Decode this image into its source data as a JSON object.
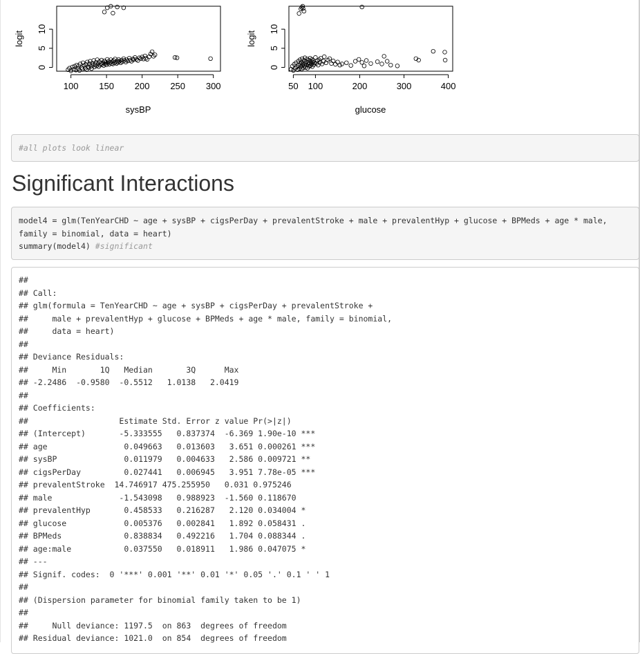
{
  "plots": [
    {
      "ylabel": "logit",
      "xlabel": "sysBP",
      "xticks": [
        100,
        150,
        200,
        250,
        300
      ],
      "yticks": [
        0,
        5,
        10
      ],
      "xlim": [
        80,
        310
      ],
      "ylim": [
        -1,
        16
      ],
      "points": [
        [
          96,
          -0.6
        ],
        [
          98,
          -0.2
        ],
        [
          100,
          -0.9
        ],
        [
          102,
          0.1
        ],
        [
          104,
          -0.5
        ],
        [
          105,
          0.3
        ],
        [
          107,
          -0.7
        ],
        [
          108,
          0.6
        ],
        [
          110,
          -0.3
        ],
        [
          111,
          0.4
        ],
        [
          112,
          -0.8
        ],
        [
          113,
          0.9
        ],
        [
          115,
          0.0
        ],
        [
          116,
          -0.4
        ],
        [
          117,
          1.2
        ],
        [
          118,
          0.5
        ],
        [
          120,
          -0.2
        ],
        [
          121,
          0.8
        ],
        [
          122,
          -0.6
        ],
        [
          123,
          1.4
        ],
        [
          124,
          0.2
        ],
        [
          125,
          -0.1
        ],
        [
          126,
          0.9
        ],
        [
          127,
          1.6
        ],
        [
          128,
          0.3
        ],
        [
          129,
          -0.3
        ],
        [
          130,
          1.1
        ],
        [
          131,
          0.6
        ],
        [
          132,
          1.8
        ],
        [
          133,
          0.1
        ],
        [
          134,
          0.7
        ],
        [
          135,
          1.3
        ],
        [
          136,
          0.4
        ],
        [
          137,
          2.0
        ],
        [
          138,
          0.9
        ],
        [
          139,
          0.2
        ],
        [
          140,
          1.5
        ],
        [
          141,
          0.6
        ],
        [
          142,
          1.0
        ],
        [
          143,
          1.9
        ],
        [
          144,
          0.8
        ],
        [
          145,
          1.2
        ],
        [
          146,
          0.5
        ],
        [
          147,
          1.7
        ],
        [
          148,
          0.9
        ],
        [
          149,
          1.4
        ],
        [
          150,
          0.7
        ],
        [
          151,
          2.1
        ],
        [
          152,
          1.1
        ],
        [
          153,
          1.6
        ],
        [
          154,
          0.8
        ],
        [
          155,
          1.3
        ],
        [
          156,
          2.0
        ],
        [
          157,
          1.0
        ],
        [
          158,
          1.5
        ],
        [
          159,
          0.9
        ],
        [
          160,
          1.8
        ],
        [
          161,
          1.2
        ],
        [
          162,
          2.2
        ],
        [
          163,
          1.4
        ],
        [
          164,
          1.0
        ],
        [
          165,
          1.7
        ],
        [
          166,
          1.3
        ],
        [
          167,
          2.1
        ],
        [
          168,
          1.6
        ],
        [
          170,
          1.2
        ],
        [
          171,
          1.9
        ],
        [
          172,
          1.5
        ],
        [
          174,
          2.3
        ],
        [
          175,
          1.8
        ],
        [
          177,
          1.4
        ],
        [
          178,
          2.0
        ],
        [
          180,
          1.7
        ],
        [
          182,
          2.4
        ],
        [
          183,
          1.9
        ],
        [
          185,
          1.6
        ],
        [
          187,
          2.2
        ],
        [
          188,
          2.0
        ],
        [
          190,
          2.6
        ],
        [
          192,
          2.1
        ],
        [
          194,
          1.8
        ],
        [
          196,
          2.5
        ],
        [
          198,
          2.3
        ],
        [
          200,
          2.7
        ],
        [
          202,
          2.2
        ],
        [
          204,
          3.0
        ],
        [
          205,
          2.4
        ],
        [
          207,
          2.1
        ],
        [
          210,
          2.8
        ],
        [
          212,
          3.5
        ],
        [
          214,
          4.1
        ],
        [
          216,
          2.9
        ],
        [
          218,
          3.3
        ],
        [
          147,
          14.5
        ],
        [
          151,
          15.6
        ],
        [
          156,
          16.0
        ],
        [
          159,
          14.2
        ],
        [
          165,
          15.8
        ],
        [
          174,
          15.6
        ],
        [
          246,
          2.6
        ],
        [
          249,
          2.5
        ],
        [
          296,
          2.3
        ]
      ]
    },
    {
      "ylabel": "logit",
      "xlabel": "glucose",
      "xticks": [
        50,
        100,
        200,
        300,
        400
      ],
      "yticks": [
        0,
        5,
        10
      ],
      "xlim": [
        40,
        410
      ],
      "ylim": [
        -1,
        16
      ],
      "points": [
        [
          45,
          -0.5
        ],
        [
          48,
          0.3
        ],
        [
          50,
          -0.8
        ],
        [
          52,
          0.8
        ],
        [
          54,
          -0.2
        ],
        [
          56,
          1.2
        ],
        [
          58,
          0.1
        ],
        [
          60,
          -0.6
        ],
        [
          61,
          1.6
        ],
        [
          62,
          0.5
        ],
        [
          64,
          -0.3
        ],
        [
          65,
          2.0
        ],
        [
          66,
          0.9
        ],
        [
          67,
          0.2
        ],
        [
          68,
          1.4
        ],
        [
          69,
          -0.4
        ],
        [
          70,
          2.3
        ],
        [
          71,
          0.7
        ],
        [
          72,
          1.1
        ],
        [
          73,
          -0.1
        ],
        [
          74,
          1.8
        ],
        [
          75,
          0.4
        ],
        [
          76,
          2.5
        ],
        [
          77,
          1.0
        ],
        [
          78,
          0.0
        ],
        [
          79,
          1.5
        ],
        [
          80,
          0.6
        ],
        [
          81,
          2.2
        ],
        [
          82,
          -0.2
        ],
        [
          83,
          1.3
        ],
        [
          84,
          0.8
        ],
        [
          85,
          1.9
        ],
        [
          86,
          0.3
        ],
        [
          87,
          1.1
        ],
        [
          88,
          2.4
        ],
        [
          89,
          0.5
        ],
        [
          90,
          1.6
        ],
        [
          91,
          0.9
        ],
        [
          92,
          2.1
        ],
        [
          93,
          0.2
        ],
        [
          94,
          1.4
        ],
        [
          95,
          1.8
        ],
        [
          96,
          0.7
        ],
        [
          98,
          1.2
        ],
        [
          100,
          2.6
        ],
        [
          102,
          1.0
        ],
        [
          104,
          1.7
        ],
        [
          106,
          0.6
        ],
        [
          108,
          2.0
        ],
        [
          110,
          1.3
        ],
        [
          112,
          2.4
        ],
        [
          115,
          0.9
        ],
        [
          118,
          1.6
        ],
        [
          120,
          2.8
        ],
        [
          124,
          1.2
        ],
        [
          128,
          1.9
        ],
        [
          132,
          2.3
        ],
        [
          136,
          1.0
        ],
        [
          140,
          1.7
        ],
        [
          145,
          0.8
        ],
        [
          150,
          1.4
        ],
        [
          155,
          0.6
        ],
        [
          160,
          0.9
        ],
        [
          170,
          1.2
        ],
        [
          180,
          0.5
        ],
        [
          190,
          1.6
        ],
        [
          198,
          2.1
        ],
        [
          205,
          1.3
        ],
        [
          210,
          0.4
        ],
        [
          215,
          1.8
        ],
        [
          225,
          1.0
        ],
        [
          240,
          1.5
        ],
        [
          250,
          0.9
        ],
        [
          255,
          2.9
        ],
        [
          262,
          1.6
        ],
        [
          270,
          0.6
        ],
        [
          285,
          0.4
        ],
        [
          327,
          2.3
        ],
        [
          333,
          1.9
        ],
        [
          366,
          4.2
        ],
        [
          392,
          4.0
        ],
        [
          393,
          1.9
        ],
        [
          63,
          14.1
        ],
        [
          67,
          15.3
        ],
        [
          69,
          15.7
        ],
        [
          71,
          16.0
        ],
        [
          72,
          15.4
        ],
        [
          74,
          14.7
        ],
        [
          205,
          15.8
        ]
      ]
    }
  ],
  "comment_chunk": "#all plots look linear",
  "section_title": "Significant Interactions",
  "code_chunk": {
    "lines": [
      "model4 = glm(TenYearCHD ~ age + sysBP + cigsPerDay + prevalentStroke + male + prevalentHyp + glucose + BPMeds + age * male,",
      "family = binomial, data = heart)"
    ],
    "last_line_code": "summary(model4) ",
    "last_line_comment": "#significant"
  },
  "output_lines": [
    "## ",
    "## Call:",
    "## glm(formula = TenYearCHD ~ age + sysBP + cigsPerDay + prevalentStroke + ",
    "##     male + prevalentHyp + glucose + BPMeds + age * male, family = binomial, ",
    "##     data = heart)",
    "## ",
    "## Deviance Residuals: ",
    "##     Min       1Q   Median       3Q      Max  ",
    "## -2.2486  -0.9580  -0.5512   1.0138   2.0419  ",
    "## ",
    "## Coefficients:",
    "##                   Estimate Std. Error z value Pr(>|z|)    ",
    "## (Intercept)       -5.333555   0.837374  -6.369 1.90e-10 ***",
    "## age                0.049663   0.013603   3.651 0.000261 ***",
    "## sysBP              0.011979   0.004633   2.586 0.009721 ** ",
    "## cigsPerDay         0.027441   0.006945   3.951 7.78e-05 ***",
    "## prevalentStroke  14.746917 475.255950   0.031 0.975246    ",
    "## male              -1.543098   0.988923  -1.560 0.118670    ",
    "## prevalentHyp       0.458533   0.216287   2.120 0.034004 *  ",
    "## glucose            0.005376   0.002841   1.892 0.058431 .  ",
    "## BPMeds             0.838834   0.492216   1.704 0.088344 .  ",
    "## age:male           0.037550   0.018911   1.986 0.047075 *  ",
    "## ---",
    "## Signif. codes:  0 '***' 0.001 '**' 0.01 '*' 0.05 '.' 0.1 ' ' 1",
    "## ",
    "## (Dispersion parameter for binomial family taken to be 1)",
    "## ",
    "##     Null deviance: 1197.5  on 863  degrees of freedom",
    "## Residual deviance: 1021.0  on 854  degrees of freedom"
  ]
}
